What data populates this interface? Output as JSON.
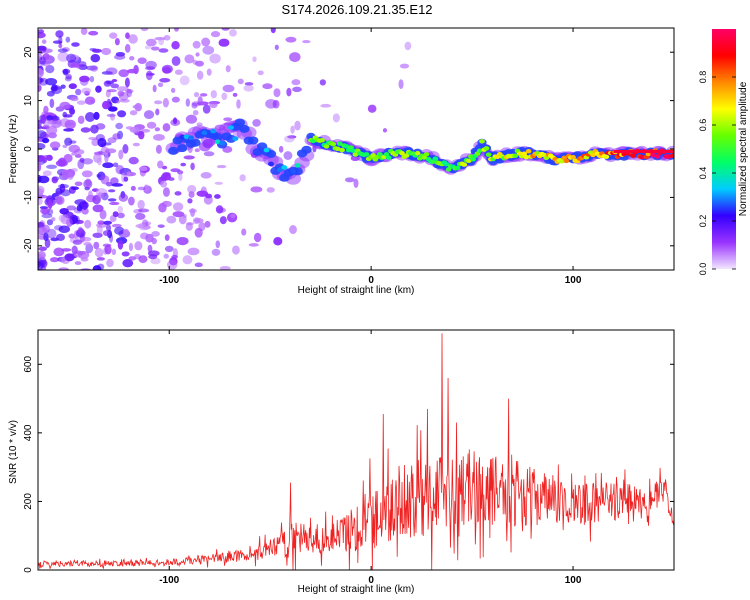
{
  "title": "S174.2026.109.21.35.E12",
  "chart_data": [
    {
      "type": "heatmap",
      "title": "S174.2026.109.21.35.E12",
      "xlabel": "Height of straight line (km)",
      "ylabel": "Frequency (Hz)",
      "xlim": [
        -165,
        150
      ],
      "ylim": [
        -25,
        25
      ],
      "xticks": [
        -100,
        0,
        100
      ],
      "yticks": [
        -20,
        -10,
        0,
        10,
        20
      ],
      "colorbar": {
        "label": "Normalized spectral amplitude",
        "range": [
          0,
          1
        ],
        "ticks": [
          0.0,
          0.2,
          0.4,
          0.6,
          0.8
        ],
        "colors": [
          "#f2e6ff",
          "#9933ff",
          "#3300ff",
          "#00ccff",
          "#00ff66",
          "#66ff00",
          "#ffff00",
          "#ff8800",
          "#ff0000",
          "#ff0066"
        ]
      },
      "ridge": {
        "x": [
          -95,
          -85,
          -75,
          -65,
          -55,
          -45,
          -38,
          -30,
          -20,
          -10,
          0,
          10,
          20,
          30,
          40,
          50,
          55,
          60,
          70,
          80,
          90,
          100,
          110,
          120,
          130,
          140,
          148
        ],
        "freq": [
          1,
          3,
          2,
          4,
          0,
          -4,
          -6,
          2,
          1,
          0,
          -2,
          -1,
          -1,
          -2,
          -4,
          -2,
          1,
          -2,
          -1,
          -1,
          -2,
          -2,
          -1,
          -1,
          -1,
          -1,
          -1
        ],
        "amplitude": [
          0.3,
          0.35,
          0.35,
          0.3,
          0.3,
          0.35,
          0.35,
          0.55,
          0.55,
          0.55,
          0.55,
          0.6,
          0.6,
          0.55,
          0.55,
          0.6,
          0.6,
          0.65,
          0.7,
          0.75,
          0.75,
          0.75,
          0.8,
          0.85,
          0.9,
          0.95,
          0.95
        ]
      }
    },
    {
      "type": "line",
      "xlabel": "Height of straight line (km)",
      "ylabel": "SNR (10 * v/v)",
      "xlim": [
        -165,
        150
      ],
      "ylim": [
        0,
        700
      ],
      "xticks": [
        -100,
        0,
        100
      ],
      "yticks": [
        0,
        200,
        400,
        600
      ],
      "color": "#ee2222",
      "envelope": {
        "x": [
          -165,
          -120,
          -100,
          -80,
          -60,
          -45,
          -40,
          -35,
          -25,
          -10,
          0,
          10,
          20,
          30,
          35,
          40,
          50,
          60,
          70,
          80,
          100,
          120,
          140,
          146,
          150
        ],
        "mean": [
          18,
          20,
          22,
          32,
          45,
          70,
          110,
          90,
          85,
          115,
          155,
          175,
          200,
          220,
          235,
          245,
          240,
          235,
          225,
          215,
          190,
          200,
          215,
          230,
          110
        ],
        "spread": [
          12,
          12,
          14,
          18,
          28,
          45,
          110,
          70,
          55,
          90,
          140,
          150,
          160,
          170,
          175,
          170,
          160,
          150,
          140,
          120,
          95,
          80,
          60,
          50,
          20
        ]
      },
      "peaks": [
        {
          "x": 35,
          "y": 690
        },
        {
          "x": 38,
          "y": 560
        },
        {
          "x": 6,
          "y": 455
        },
        {
          "x": 28,
          "y": 470
        },
        {
          "x": 68,
          "y": 500
        },
        {
          "x": -40,
          "y": 255
        }
      ]
    }
  ],
  "labels": {
    "xlabel_top": "Height of straight line (km)",
    "xlabel_bottom": "Height of straight line (km)",
    "ylabel_top": "Frequency (Hz)",
    "ylabel_bottom": "SNR (10 * v/v)",
    "colorbar_label": "Normalized spectral amplitude"
  }
}
